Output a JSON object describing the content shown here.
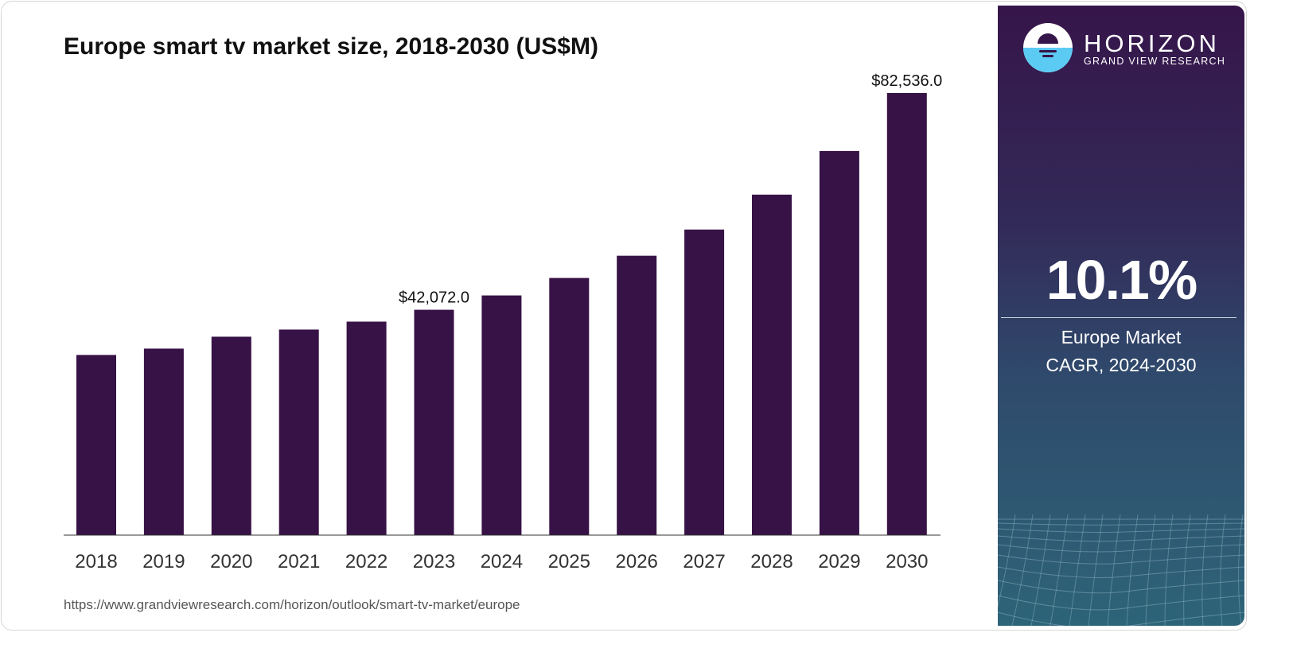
{
  "chart_data": {
    "type": "bar",
    "title": "Europe smart tv market size, 2018-2030 (US$M)",
    "categories": [
      "2018",
      "2019",
      "2020",
      "2021",
      "2022",
      "2023",
      "2024",
      "2025",
      "2026",
      "2027",
      "2028",
      "2029",
      "2030"
    ],
    "values": [
      33635,
      34820,
      37043,
      38377,
      39858,
      42072,
      44748,
      48008,
      52157,
      57047,
      63566,
      71716,
      82536
    ],
    "data_labels": {
      "2023": "$42,072.0",
      "2030": "$82,536.0"
    },
    "xlabel": "",
    "ylabel": "",
    "ylim": [
      0,
      82536
    ],
    "grid": false,
    "bar_color": "#371246"
  },
  "source": "https://www.grandviewresearch.com/horizon/outlook/smart-tv-market/europe",
  "panel": {
    "brand": "HORIZON",
    "brand_sub": "GRAND VIEW RESEARCH",
    "cagr": "10.1%",
    "label_line1": "Europe Market",
    "label_line2": "CAGR, 2024-2030"
  }
}
